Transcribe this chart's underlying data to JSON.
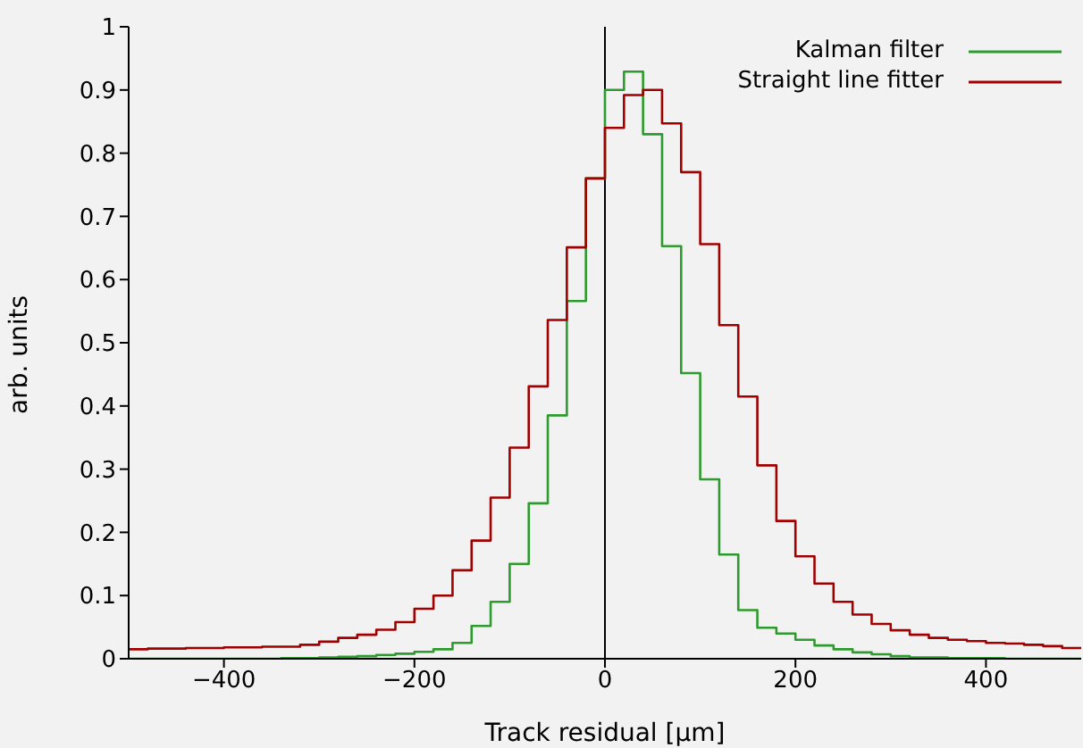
{
  "chart_data": {
    "type": "histogram",
    "xlabel": "Track residual [µm]",
    "ylabel": "arb. units",
    "bins": [
      -500,
      -480,
      -460,
      -440,
      -420,
      -400,
      -380,
      -360,
      -340,
      -320,
      -300,
      -280,
      -260,
      -240,
      -220,
      -200,
      -180,
      -160,
      -140,
      -120,
      -100,
      -80,
      -60,
      -40,
      -20,
      0,
      20,
      40,
      60,
      80,
      100,
      120,
      140,
      160,
      180,
      200,
      220,
      240,
      260,
      280,
      300,
      320,
      340,
      360,
      380,
      400,
      420,
      440,
      460,
      480,
      500
    ],
    "series": [
      {
        "name": "Kalman filter",
        "color": "#2e9b2e",
        "values": [
          0,
          0,
          0,
          0,
          0,
          0,
          0,
          0,
          0.001,
          0.001,
          0.002,
          0.003,
          0.004,
          0.006,
          0.008,
          0.011,
          0.015,
          0.025,
          0.052,
          0.09,
          0.15,
          0.246,
          0.385,
          0.566,
          0.76,
          0.9,
          0.929,
          0.83,
          0.653,
          0.452,
          0.284,
          0.165,
          0.077,
          0.049,
          0.04,
          0.03,
          0.021,
          0.015,
          0.01,
          0.007,
          0.004,
          0.002,
          0.002,
          0.001,
          0.001,
          0.001,
          0,
          0,
          0,
          0
        ]
      },
      {
        "name": "Straight line fitter",
        "color": "#a00000",
        "values": [
          0.015,
          0.016,
          0.016,
          0.017,
          0.017,
          0.018,
          0.018,
          0.019,
          0.019,
          0.022,
          0.027,
          0.033,
          0.038,
          0.046,
          0.058,
          0.079,
          0.1,
          0.14,
          0.187,
          0.255,
          0.334,
          0.431,
          0.536,
          0.651,
          0.76,
          0.84,
          0.892,
          0.9,
          0.847,
          0.77,
          0.656,
          0.528,
          0.415,
          0.306,
          0.218,
          0.162,
          0.119,
          0.09,
          0.07,
          0.055,
          0.045,
          0.038,
          0.033,
          0.03,
          0.028,
          0.025,
          0.024,
          0.022,
          0.02,
          0.017
        ]
      }
    ],
    "xlim": [
      -500,
      500
    ],
    "xticks": [
      {
        "value": -400,
        "label": "−400"
      },
      {
        "value": -200,
        "label": "−200"
      },
      0,
      200,
      400
    ],
    "ylim": [
      0,
      1
    ],
    "yticks": [
      0,
      0.1,
      0.2,
      0.3,
      0.4,
      0.5,
      0.6,
      0.7,
      0.8,
      0.9,
      1
    ],
    "ref_lines": [
      {
        "axis": "x",
        "value": 0,
        "color": "#000000"
      }
    ],
    "grid": false,
    "legend": "top right"
  }
}
